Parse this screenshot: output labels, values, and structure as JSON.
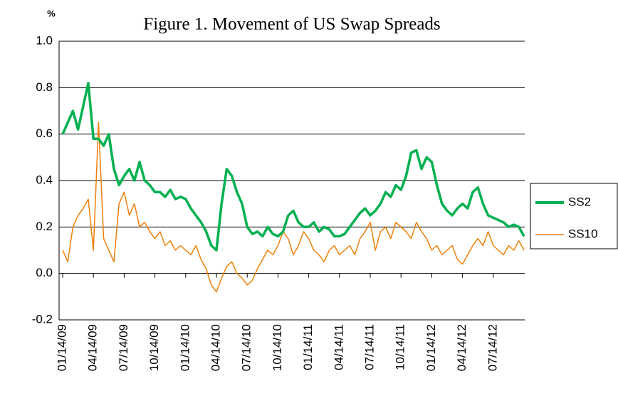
{
  "chart_data": {
    "type": "line",
    "title": "Figure 1. Movement of US Swap Spreads",
    "ylabel": "%",
    "categories": [
      "01/14/09",
      null,
      null,
      null,
      null,
      null,
      "04/14/09",
      null,
      null,
      null,
      null,
      null,
      "07/14/09",
      null,
      null,
      null,
      null,
      null,
      "10/14/09",
      null,
      null,
      null,
      null,
      null,
      "01/14/10",
      null,
      null,
      null,
      null,
      null,
      "04/14/10",
      null,
      null,
      null,
      null,
      null,
      "07/14/10",
      null,
      null,
      null,
      null,
      null,
      "10/14/10",
      null,
      null,
      null,
      null,
      null,
      "01/14/11",
      null,
      null,
      null,
      null,
      null,
      "04/14/11",
      null,
      null,
      null,
      null,
      null,
      "07/14/11",
      null,
      null,
      null,
      null,
      null,
      "10/14/11",
      null,
      null,
      null,
      null,
      null,
      "01/14/12",
      null,
      null,
      null,
      null,
      null,
      "04/14/12",
      null,
      null,
      null,
      null,
      null,
      "07/14/12",
      null,
      null,
      null,
      null,
      null,
      null
    ],
    "series": [
      {
        "name": "SS2",
        "color": "#00b050",
        "values": [
          0.6,
          0.65,
          0.7,
          0.62,
          0.72,
          0.82,
          0.58,
          0.58,
          0.55,
          0.6,
          0.45,
          0.38,
          0.42,
          0.45,
          0.4,
          0.48,
          0.4,
          0.38,
          0.35,
          0.35,
          0.33,
          0.36,
          0.32,
          0.33,
          0.32,
          0.28,
          0.25,
          0.22,
          0.18,
          0.12,
          0.1,
          0.3,
          0.45,
          0.42,
          0.35,
          0.3,
          0.2,
          0.17,
          0.18,
          0.16,
          0.2,
          0.17,
          0.16,
          0.18,
          0.25,
          0.27,
          0.22,
          0.2,
          0.2,
          0.22,
          0.18,
          0.2,
          0.19,
          0.16,
          0.16,
          0.17,
          0.2,
          0.23,
          0.26,
          0.28,
          0.25,
          0.27,
          0.3,
          0.35,
          0.33,
          0.38,
          0.36,
          0.42,
          0.52,
          0.53,
          0.45,
          0.5,
          0.48,
          0.38,
          0.3,
          0.27,
          0.25,
          0.28,
          0.3,
          0.28,
          0.35,
          0.37,
          0.3,
          0.25,
          0.24,
          0.23,
          0.22,
          0.2,
          0.21,
          0.2,
          0.16
        ]
      },
      {
        "name": "SS10",
        "color": "#f07f09",
        "values": [
          0.1,
          0.05,
          0.2,
          0.25,
          0.28,
          0.32,
          0.1,
          0.65,
          0.15,
          0.1,
          0.05,
          0.3,
          0.35,
          0.25,
          0.3,
          0.2,
          0.22,
          0.18,
          0.15,
          0.18,
          0.12,
          0.14,
          0.1,
          0.12,
          0.1,
          0.08,
          0.12,
          0.06,
          0.02,
          -0.05,
          -0.08,
          -0.02,
          0.03,
          0.05,
          0.0,
          -0.02,
          -0.05,
          -0.03,
          0.02,
          0.06,
          0.1,
          0.08,
          0.12,
          0.18,
          0.15,
          0.08,
          0.12,
          0.18,
          0.15,
          0.1,
          0.08,
          0.05,
          0.1,
          0.12,
          0.08,
          0.1,
          0.12,
          0.08,
          0.15,
          0.18,
          0.22,
          0.1,
          0.18,
          0.2,
          0.15,
          0.22,
          0.2,
          0.18,
          0.15,
          0.22,
          0.18,
          0.15,
          0.1,
          0.12,
          0.08,
          0.1,
          0.12,
          0.06,
          0.04,
          0.08,
          0.12,
          0.15,
          0.12,
          0.18,
          0.12,
          0.1,
          0.08,
          0.12,
          0.1,
          0.14,
          0.1
        ]
      }
    ],
    "ylim": [
      -0.2,
      1.0
    ],
    "yticks": [
      -0.2,
      {
        "value": 0,
        "label": "0.0"
      },
      0.2,
      0.4,
      0.6,
      0.8,
      {
        "value": 1,
        "label": "1.0"
      }
    ],
    "grid": true,
    "legend": "right"
  }
}
